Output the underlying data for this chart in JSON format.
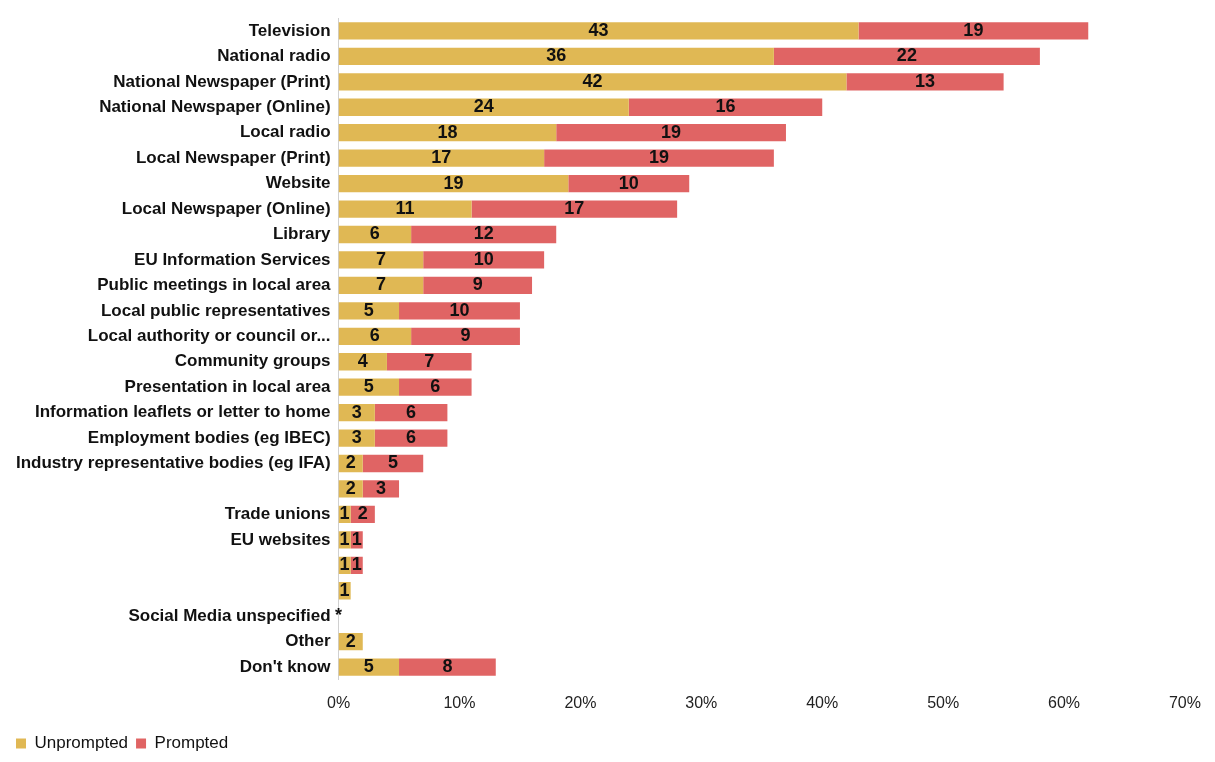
{
  "chart_data": {
    "type": "bar",
    "orientation": "horizontal",
    "stacked": true,
    "categories": [
      "Television",
      "National radio",
      "National Newspaper (Print)",
      "National Newspaper (Online)",
      "Local radio",
      "Local Newspaper (Print)",
      "Website",
      "Local Newspaper (Online)",
      "Library",
      "EU Information Services",
      "Public meetings in local area",
      "Local public representatives",
      "Local authority or council or...",
      "Community groups",
      "Presentation in local area",
      "Information leaflets or letter to home",
      "Employment bodies (eg IBEC)",
      "Industry representative bodies (eg IFA)",
      null,
      "Trade unions",
      "EU websites",
      null,
      null,
      "Social Media unspecified",
      "Other",
      "Don't know"
    ],
    "series": [
      {
        "name": "Unprompted",
        "color": "#e0b854",
        "values": [
          43,
          36,
          42,
          24,
          18,
          17,
          19,
          11,
          6,
          7,
          7,
          5,
          6,
          4,
          5,
          3,
          3,
          2,
          2,
          1,
          1,
          1,
          1,
          0,
          2,
          5
        ],
        "value_labels": [
          "43",
          "36",
          "42",
          "24",
          "18",
          "17",
          "19",
          "11",
          "6",
          "7",
          "7",
          "5",
          "6",
          "4",
          "5",
          "3",
          "3",
          "2",
          "2",
          "1",
          "1",
          "1",
          "1",
          "*",
          "2",
          "5"
        ]
      },
      {
        "name": "Prompted",
        "color": "#e06464",
        "values": [
          19,
          22,
          13,
          16,
          19,
          19,
          10,
          17,
          12,
          10,
          9,
          10,
          9,
          7,
          6,
          6,
          6,
          5,
          3,
          2,
          1,
          1,
          null,
          null,
          null,
          8
        ],
        "value_labels": [
          "19",
          "22",
          "13",
          "16",
          "19",
          "19",
          "10",
          "17",
          "12",
          "10",
          "9",
          "10",
          "9",
          "7",
          "6",
          "6",
          "6",
          "5",
          "3",
          "2",
          "1",
          "1",
          null,
          null,
          null,
          "8"
        ]
      }
    ],
    "xlim": [
      0,
      70
    ],
    "xticks": [
      {
        "value": 0,
        "label": "0%"
      },
      {
        "value": 10,
        "label": "10%"
      },
      {
        "value": 20,
        "label": "20%"
      },
      {
        "value": 30,
        "label": "30%"
      },
      {
        "value": 40,
        "label": "40%"
      },
      {
        "value": 50,
        "label": "50%"
      },
      {
        "value": 60,
        "label": "60%"
      },
      {
        "value": 70,
        "label": "70%"
      }
    ],
    "grid": false,
    "legend": "bottom"
  }
}
